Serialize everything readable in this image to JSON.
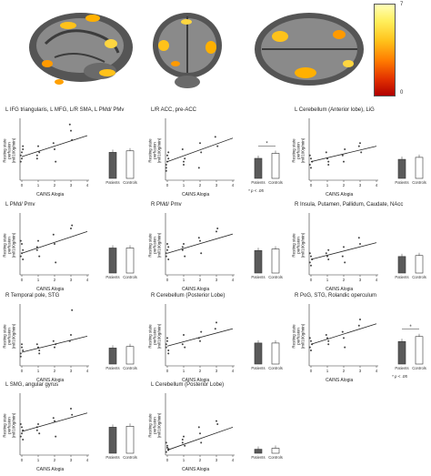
{
  "colorbar": {
    "max": "7",
    "min": "0"
  },
  "panels": [
    {
      "title": "L IFG triangularis, L MFG, L/R SMA, L PMd/ PMv",
      "sig": false
    },
    {
      "title": "L/R ACC, pre-ACC",
      "sig": true,
      "note": "* p < .05"
    },
    {
      "title": "L Cerebellum (Anterior lobe), LiG",
      "sig": false
    },
    {
      "title": "L PMd/ Pmv",
      "sig": false
    },
    {
      "title": "R PMd/ Pmv",
      "sig": false
    },
    {
      "title": "R Insula, Putamen, Pallidum, Caudate, NAcc",
      "sig": false
    },
    {
      "title": "R Temporal pole, STG",
      "sig": false
    },
    {
      "title": "R Cerebellum (Posterior Lobe)",
      "sig": false
    },
    {
      "title": "R PoG, STG, Rolandic operculum",
      "sig": true,
      "note": "* p < .05"
    },
    {
      "title": "L SMG, angular gyrus",
      "sig": false
    },
    {
      "title": "L Cerebellum (Posterior Lobe)",
      "sig": false
    }
  ],
  "common": {
    "ylabel": "Resting state perfusion (ml/100g/min)",
    "xlabel": "CAINS Alogia",
    "xticks": [
      "0",
      "1",
      "2",
      "3",
      "4"
    ],
    "bar_labels": [
      "Patients",
      "Controls"
    ],
    "star": "*"
  },
  "chart_data": [
    {
      "type": "scatter",
      "title": "L IFG triangularis, L MFG, L/R SMA, L PMd/ PMv",
      "xlabel": "CAINS Alogia",
      "ylabel": "Resting state perfusion (ml/100g/min)",
      "x": [
        0,
        0,
        0,
        0,
        0,
        0,
        1,
        1,
        1,
        1,
        2,
        2,
        2,
        3,
        3,
        3
      ],
      "y": [
        0.3,
        0.45,
        0.5,
        0.4,
        0.35,
        0.55,
        0.4,
        0.55,
        0.45,
        0.35,
        0.5,
        0.3,
        0.6,
        0.8,
        0.65,
        0.9
      ],
      "fit": [
        0.38,
        0.72
      ],
      "bars": {
        "categories": [
          "Patients",
          "Controls"
        ],
        "values": [
          0.52,
          0.55
        ]
      }
    },
    {
      "type": "scatter",
      "title": "L/R ACC, pre-ACC",
      "xlabel": "CAINS Alogia",
      "ylabel": "Resting state perfusion (ml/100g/min)",
      "x": [
        0,
        0,
        0,
        0,
        0,
        0,
        0,
        1,
        1,
        1,
        1,
        2,
        2,
        2,
        3,
        3
      ],
      "y": [
        0.2,
        0.3,
        0.35,
        0.25,
        0.4,
        0.45,
        0.15,
        0.3,
        0.35,
        0.5,
        0.25,
        0.45,
        0.2,
        0.6,
        0.55,
        0.7
      ],
      "fit": [
        0.3,
        0.68
      ],
      "bars": {
        "categories": [
          "Patients",
          "Controls"
        ],
        "values": [
          0.4,
          0.5
        ]
      }
    },
    {
      "type": "scatter",
      "title": "L Cerebellum (Anterior lobe), LiG",
      "xlabel": "CAINS Alogia",
      "ylabel": "Resting state perfusion (ml/100g/min)",
      "x": [
        0,
        0,
        0,
        0,
        0,
        1,
        1,
        1,
        1,
        2,
        2,
        2,
        3,
        3,
        3
      ],
      "y": [
        0.25,
        0.35,
        0.3,
        0.4,
        0.2,
        0.3,
        0.45,
        0.35,
        0.25,
        0.4,
        0.3,
        0.5,
        0.55,
        0.6,
        0.45
      ],
      "fit": [
        0.3,
        0.55
      ],
      "bars": {
        "categories": [
          "Patients",
          "Controls"
        ],
        "values": [
          0.38,
          0.42
        ]
      }
    },
    {
      "type": "scatter",
      "title": "L PMd/ Pmv",
      "xlabel": "CAINS Alogia",
      "ylabel": "Resting state perfusion (ml/100g/min)",
      "x": [
        0,
        0,
        0,
        0,
        0,
        0,
        1,
        1,
        1,
        1,
        2,
        2,
        2,
        3,
        3
      ],
      "y": [
        0.3,
        0.5,
        0.4,
        0.55,
        0.35,
        0.25,
        0.45,
        0.55,
        0.3,
        0.4,
        0.5,
        0.2,
        0.65,
        0.75,
        0.8
      ],
      "fit": [
        0.35,
        0.7
      ],
      "bars": {
        "categories": [
          "Patients",
          "Controls"
        ],
        "values": [
          0.5,
          0.5
        ]
      }
    },
    {
      "type": "scatter",
      "title": "R PMd/ Pmv",
      "xlabel": "CAINS Alogia",
      "ylabel": "Resting state perfusion (ml/100g/min)",
      "x": [
        0,
        0,
        0,
        0,
        0,
        0,
        1,
        1,
        1,
        1,
        2,
        2,
        2,
        3,
        3
      ],
      "y": [
        0.3,
        0.4,
        0.45,
        0.35,
        0.5,
        0.25,
        0.4,
        0.5,
        0.3,
        0.45,
        0.55,
        0.35,
        0.6,
        0.7,
        0.75
      ],
      "fit": [
        0.35,
        0.66
      ],
      "bars": {
        "categories": [
          "Patients",
          "Controls"
        ],
        "values": [
          0.45,
          0.48
        ]
      }
    },
    {
      "type": "scatter",
      "title": "R Insula, Putamen, Pallidum, Caudate, NAcc",
      "xlabel": "CAINS Alogia",
      "ylabel": "Resting state perfusion (ml/100g/min)",
      "x": [
        0,
        0,
        0,
        0,
        0,
        1,
        1,
        1,
        1,
        2,
        2,
        2,
        3,
        3
      ],
      "y": [
        0.2,
        0.3,
        0.25,
        0.35,
        0.15,
        0.25,
        0.35,
        0.3,
        0.4,
        0.3,
        0.45,
        0.2,
        0.6,
        0.5
      ],
      "fit": [
        0.25,
        0.52
      ],
      "bars": {
        "categories": [
          "Patients",
          "Controls"
        ],
        "values": [
          0.33,
          0.35
        ]
      }
    },
    {
      "type": "scatter",
      "title": "R Temporal pole, STG",
      "xlabel": "CAINS Alogia",
      "ylabel": "Resting state perfusion (ml/100g/min)",
      "x": [
        0,
        0,
        0,
        0,
        0,
        1,
        1,
        1,
        1,
        2,
        2,
        2,
        3,
        3,
        3
      ],
      "y": [
        0.2,
        0.3,
        0.25,
        0.15,
        0.35,
        0.25,
        0.35,
        0.3,
        0.2,
        0.4,
        0.3,
        0.35,
        0.4,
        0.5,
        0.9
      ],
      "fit": [
        0.22,
        0.48
      ],
      "bars": {
        "categories": [
          "Patients",
          "Controls"
        ],
        "values": [
          0.32,
          0.35
        ]
      }
    },
    {
      "type": "scatter",
      "title": "R Cerebellum (Posterior Lobe)",
      "xlabel": "CAINS Alogia",
      "ylabel": "Resting state perfusion (ml/100g/min)",
      "x": [
        0,
        0,
        0,
        0,
        0,
        0,
        1,
        1,
        1,
        2,
        2,
        2,
        3,
        3
      ],
      "y": [
        0.3,
        0.4,
        0.2,
        0.35,
        0.45,
        0.25,
        0.35,
        0.5,
        0.3,
        0.45,
        0.4,
        0.55,
        0.6,
        0.7
      ],
      "fit": [
        0.32,
        0.6
      ],
      "bars": {
        "categories": [
          "Patients",
          "Controls"
        ],
        "values": [
          0.42,
          0.42
        ]
      }
    },
    {
      "type": "scatter",
      "title": "R PoG, STG, Rolandic operculum",
      "xlabel": "CAINS Alogia",
      "ylabel": "Resting state perfusion (ml/100g/min)",
      "x": [
        0,
        0,
        0,
        0,
        0,
        1,
        1,
        1,
        1,
        2,
        2,
        2,
        3,
        3
      ],
      "y": [
        0.3,
        0.4,
        0.35,
        0.45,
        0.25,
        0.4,
        0.5,
        0.45,
        0.35,
        0.55,
        0.45,
        0.3,
        0.65,
        0.75
      ],
      "fit": [
        0.35,
        0.68
      ],
      "bars": {
        "categories": [
          "Patients",
          "Controls"
        ],
        "values": [
          0.45,
          0.55
        ]
      }
    },
    {
      "type": "scatter",
      "title": "L SMG, angular gyrus",
      "xlabel": "CAINS Alogia",
      "ylabel": "Resting state perfusion (ml/100g/min)",
      "x": [
        0,
        0,
        0,
        0,
        0,
        0,
        1,
        1,
        1,
        1,
        2,
        2,
        2,
        3,
        3
      ],
      "y": [
        0.3,
        0.45,
        0.4,
        0.5,
        0.35,
        0.25,
        0.4,
        0.5,
        0.35,
        0.45,
        0.55,
        0.3,
        0.6,
        0.75,
        0.65
      ],
      "fit": [
        0.38,
        0.68
      ],
      "bars": {
        "categories": [
          "Patients",
          "Controls"
        ],
        "values": [
          0.52,
          0.54
        ]
      }
    },
    {
      "type": "scatter",
      "title": "L Cerebellum (Posterior Lobe)",
      "xlabel": "CAINS Alogia",
      "ylabel": "Resting state perfusion (ml/100g/min)",
      "x": [
        0,
        0,
        0,
        0,
        0,
        0,
        1,
        1,
        1,
        1,
        2,
        2,
        2,
        3,
        3
      ],
      "y": [
        0.05,
        0.15,
        0.1,
        0.2,
        0.12,
        0.08,
        0.2,
        0.3,
        0.15,
        0.25,
        0.35,
        0.2,
        0.45,
        0.55,
        0.5
      ],
      "fit": [
        0.08,
        0.45
      ],
      "bars": {
        "categories": [
          "Patients",
          "Controls"
        ],
        "values": [
          0.08,
          0.1
        ]
      }
    }
  ]
}
